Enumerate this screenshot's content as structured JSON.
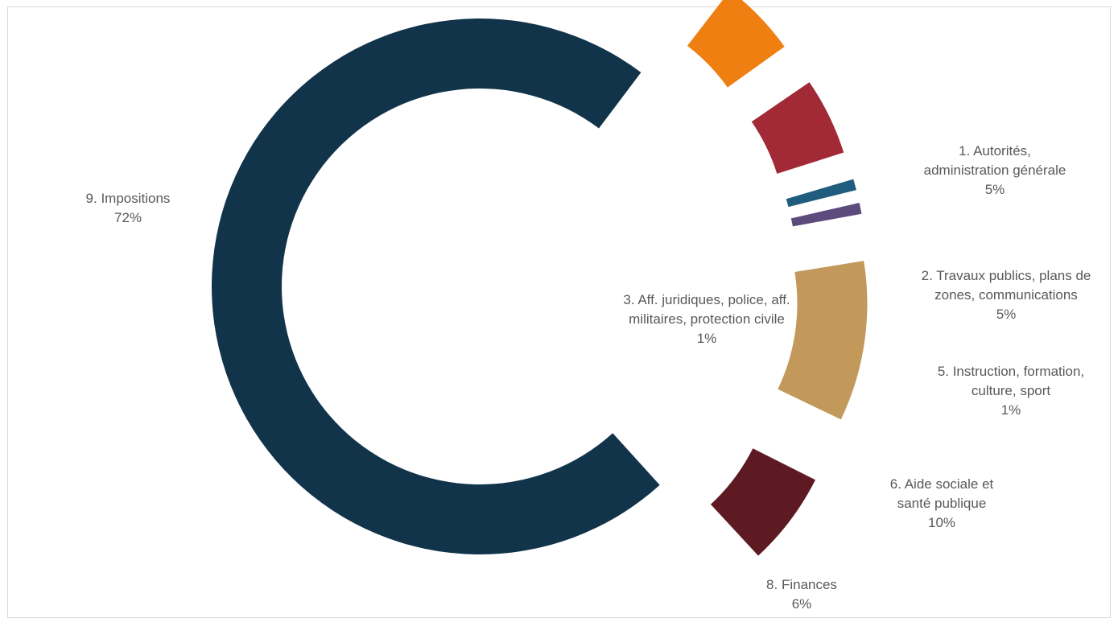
{
  "chart_data": {
    "type": "pie",
    "variant": "exploded-donut",
    "legend": "none",
    "slices": [
      {
        "name": "1.  Autorités, administration générale",
        "value": 5,
        "value_label": "5%",
        "label_lines": [
          "1.  Autorités,",
          "administration générale"
        ],
        "color": "#ee7f10"
      },
      {
        "name": "2.  Travaux publics, plans de zones, communications",
        "value": 5,
        "value_label": "5%",
        "label_lines": [
          "2.  Travaux publics, plans de",
          "zones, communications"
        ],
        "color": "#a12a36"
      },
      {
        "name": "3.  Aff. juridiques, police, aff. militaires, protection civile",
        "value": 1,
        "value_label": "1%",
        "label_lines": [
          "3.  Aff. juridiques, police, aff.",
          "militaires, protection civile"
        ],
        "color": "#1f5c7d"
      },
      {
        "name": "5.  Instruction, formation, culture, sport",
        "value": 1,
        "value_label": "1%",
        "label_lines": [
          "5.  Instruction, formation,",
          "culture, sport"
        ],
        "color": "#5e4b7d"
      },
      {
        "name": "6.  Aide sociale et santé publique",
        "value": 10,
        "value_label": "10%",
        "label_lines": [
          "6.  Aide sociale et",
          "santé publique"
        ],
        "color": "#c2995b"
      },
      {
        "name": "8.  Finances",
        "value": 6,
        "value_label": "6%",
        "label_lines": [
          "8.  Finances"
        ],
        "color": "#5e1a22"
      },
      {
        "name": "9.  Impositions",
        "value": 72,
        "value_label": "72%",
        "label_lines": [
          "9.  Impositions"
        ],
        "color": "#12344b"
      }
    ]
  }
}
